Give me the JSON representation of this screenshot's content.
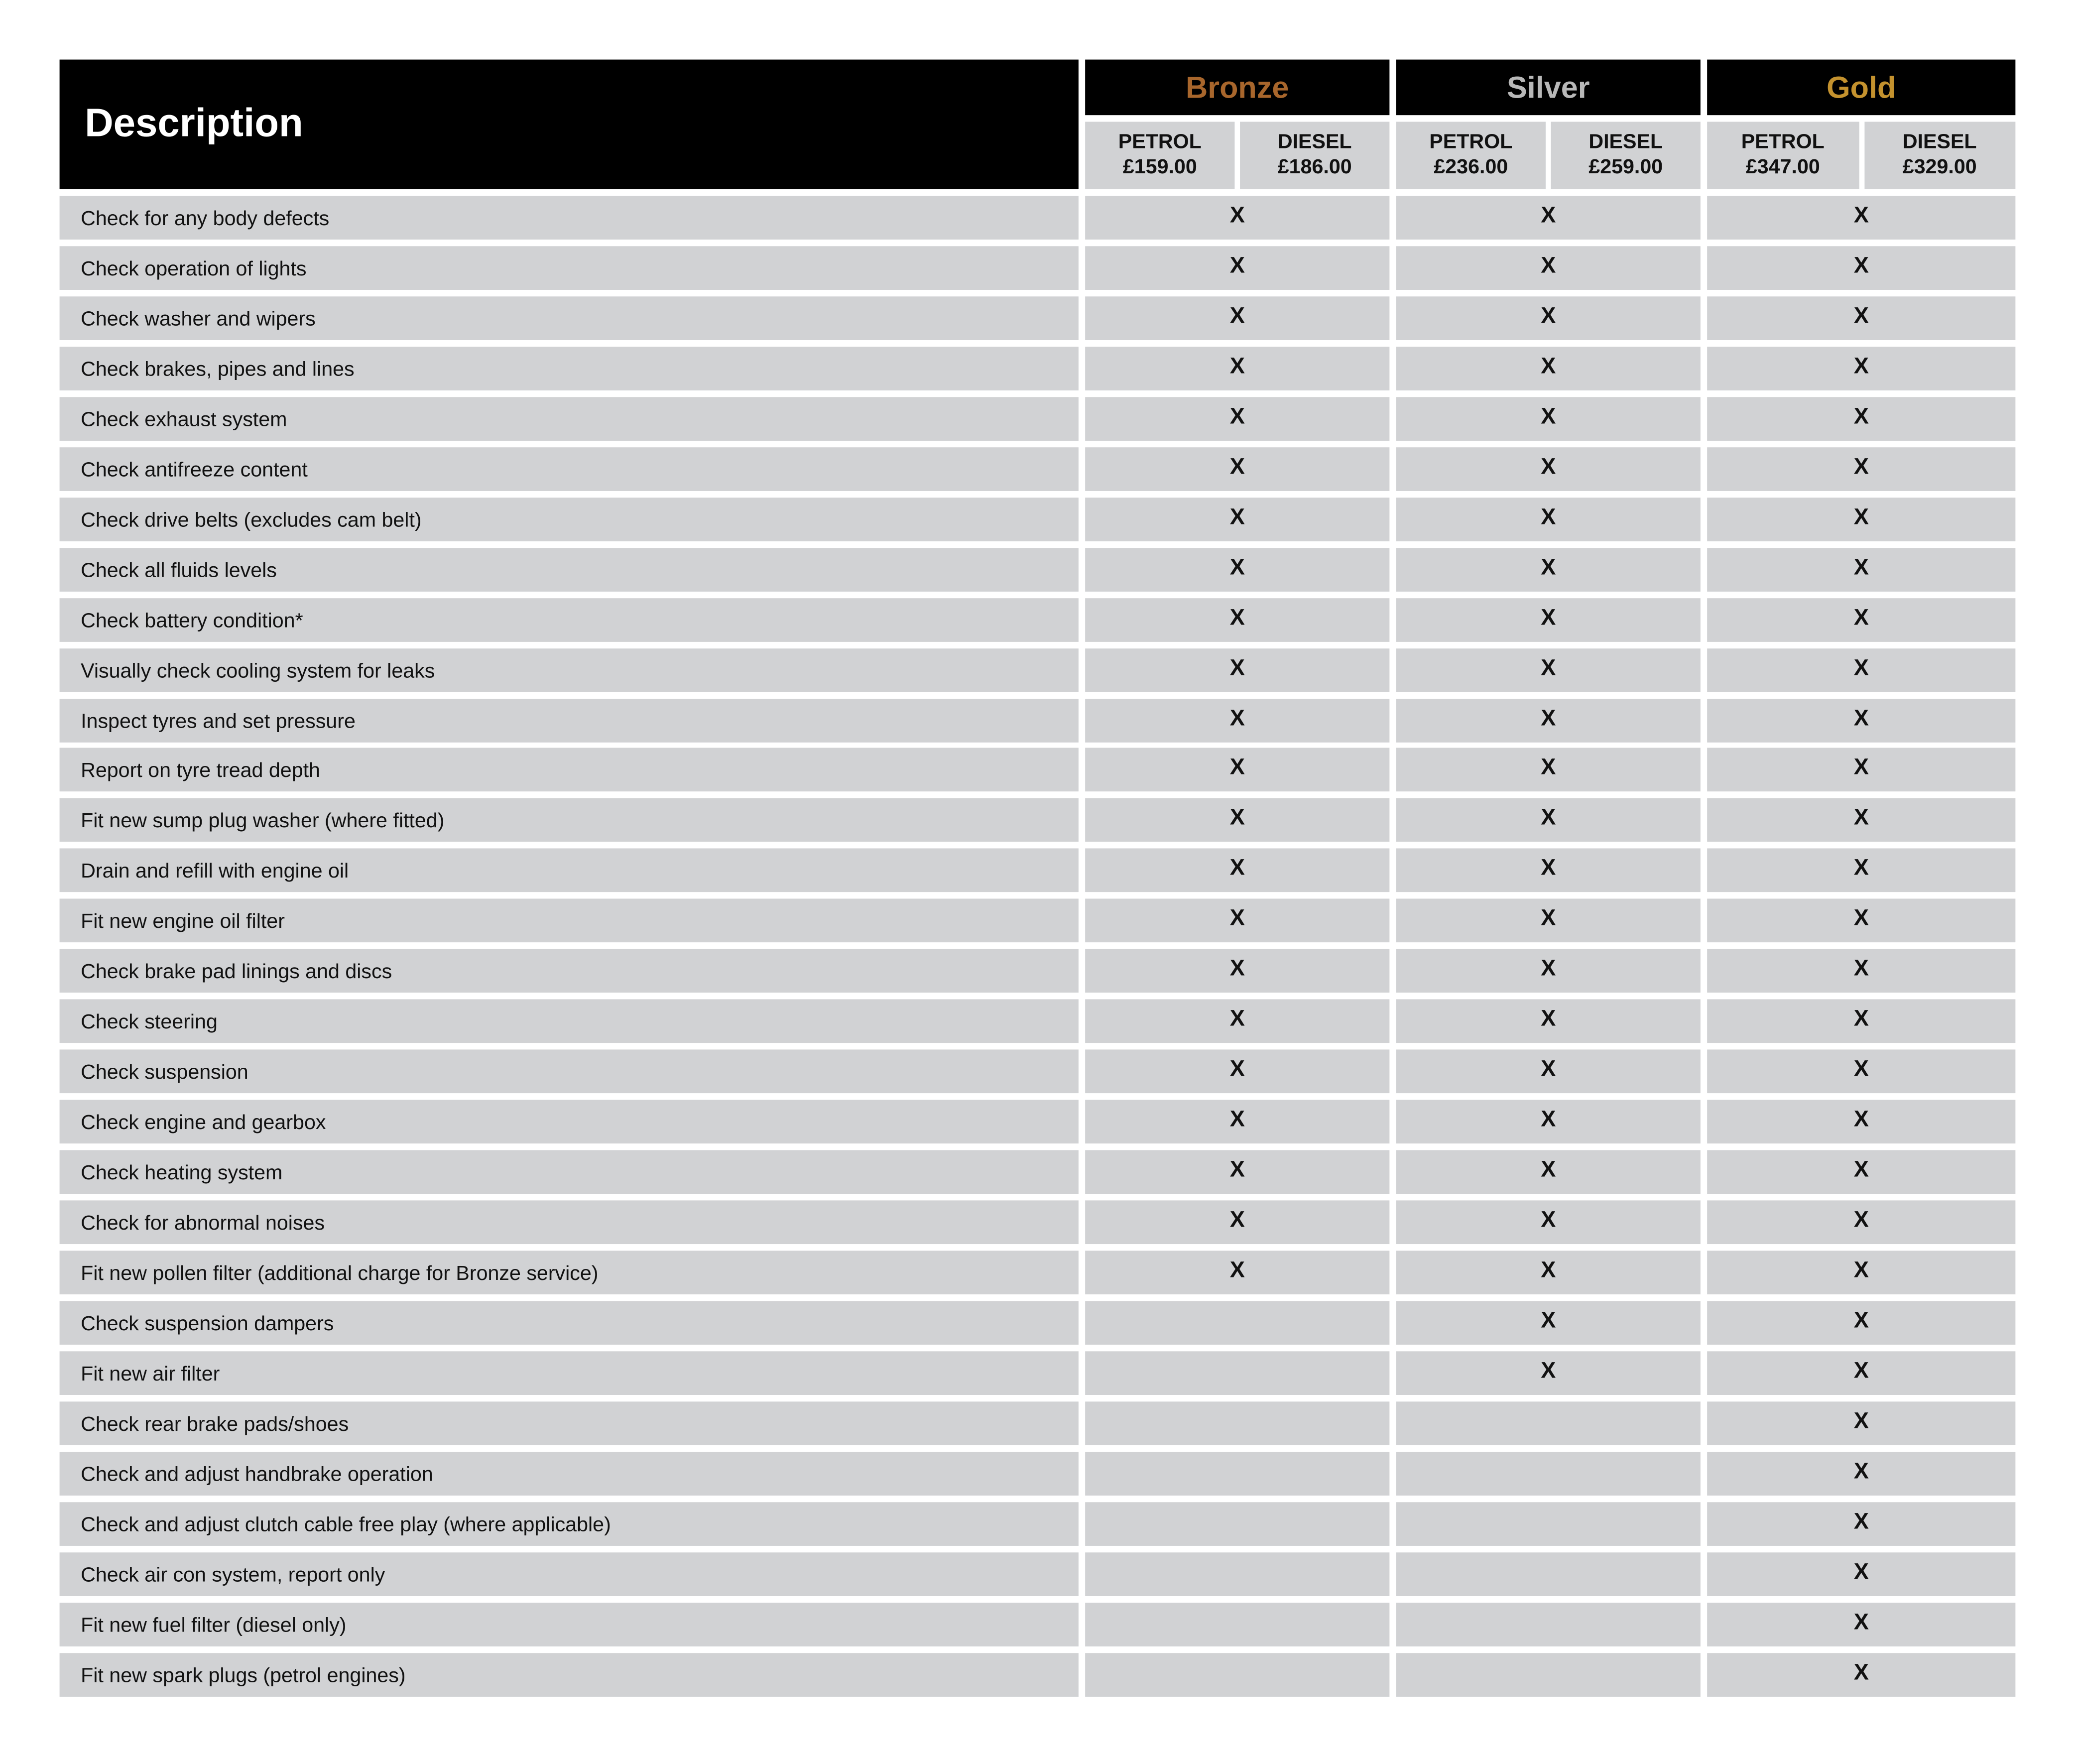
{
  "header": {
    "description": "Description"
  },
  "tiers": [
    {
      "name": "Bronze",
      "color": "#a8662c",
      "petrol_label": "PETROL",
      "petrol_price": "£159.00",
      "diesel_label": "DIESEL",
      "diesel_price": "£186.00"
    },
    {
      "name": "Silver",
      "color": "#b8b8b8",
      "petrol_label": "PETROL",
      "petrol_price": "£236.00",
      "diesel_label": "DIESEL",
      "diesel_price": "£259.00"
    },
    {
      "name": "Gold",
      "color": "#c4922e",
      "petrol_label": "PETROL",
      "petrol_price": "£347.00",
      "diesel_label": "DIESEL",
      "diesel_price": "£329.00"
    }
  ],
  "check_mark": "X",
  "rows": [
    {
      "label": "Check for any body defects",
      "bronze": true,
      "silver": true,
      "gold": true
    },
    {
      "label": "Check operation of lights",
      "bronze": true,
      "silver": true,
      "gold": true
    },
    {
      "label": "Check washer and wipers",
      "bronze": true,
      "silver": true,
      "gold": true
    },
    {
      "label": "Check brakes, pipes and lines",
      "bronze": true,
      "silver": true,
      "gold": true
    },
    {
      "label": "Check exhaust system",
      "bronze": true,
      "silver": true,
      "gold": true
    },
    {
      "label": "Check antifreeze content",
      "bronze": true,
      "silver": true,
      "gold": true
    },
    {
      "label": "Check drive belts (excludes cam belt)",
      "bronze": true,
      "silver": true,
      "gold": true
    },
    {
      "label": "Check all fluids levels",
      "bronze": true,
      "silver": true,
      "gold": true
    },
    {
      "label": "Check battery condition*",
      "bronze": true,
      "silver": true,
      "gold": true
    },
    {
      "label": "Visually check cooling system for leaks",
      "bronze": true,
      "silver": true,
      "gold": true
    },
    {
      "label": "Inspect tyres and set pressure",
      "bronze": true,
      "silver": true,
      "gold": true
    },
    {
      "label": "Report on tyre tread depth",
      "bronze": true,
      "silver": true,
      "gold": true
    },
    {
      "label": "Fit new sump plug washer (where fitted)",
      "bronze": true,
      "silver": true,
      "gold": true
    },
    {
      "label": "Drain and refill with engine oil",
      "bronze": true,
      "silver": true,
      "gold": true
    },
    {
      "label": "Fit new engine oil filter",
      "bronze": true,
      "silver": true,
      "gold": true
    },
    {
      "label": "Check brake pad linings and discs",
      "bronze": true,
      "silver": true,
      "gold": true
    },
    {
      "label": "Check steering",
      "bronze": true,
      "silver": true,
      "gold": true
    },
    {
      "label": "Check suspension",
      "bronze": true,
      "silver": true,
      "gold": true
    },
    {
      "label": "Check engine and gearbox",
      "bronze": true,
      "silver": true,
      "gold": true
    },
    {
      "label": "Check heating system",
      "bronze": true,
      "silver": true,
      "gold": true
    },
    {
      "label": "Check for abnormal noises",
      "bronze": true,
      "silver": true,
      "gold": true
    },
    {
      "label": "Fit new pollen filter (additional charge for Bronze service)",
      "bronze": true,
      "silver": true,
      "gold": true
    },
    {
      "label": "Check suspension dampers",
      "bronze": false,
      "silver": true,
      "gold": true
    },
    {
      "label": "Fit new air filter",
      "bronze": false,
      "silver": true,
      "gold": true
    },
    {
      "label": "Check rear brake pads/shoes",
      "bronze": false,
      "silver": false,
      "gold": true
    },
    {
      "label": "Check and adjust handbrake operation",
      "bronze": false,
      "silver": false,
      "gold": true
    },
    {
      "label": "Check and adjust clutch cable free play (where applicable)",
      "bronze": false,
      "silver": false,
      "gold": true
    },
    {
      "label": "Check air con system, report only",
      "bronze": false,
      "silver": false,
      "gold": true
    },
    {
      "label": "Fit new fuel filter (diesel only)",
      "bronze": false,
      "silver": false,
      "gold": true
    },
    {
      "label": "Fit new spark plugs (petrol engines)",
      "bronze": false,
      "silver": false,
      "gold": true
    }
  ]
}
